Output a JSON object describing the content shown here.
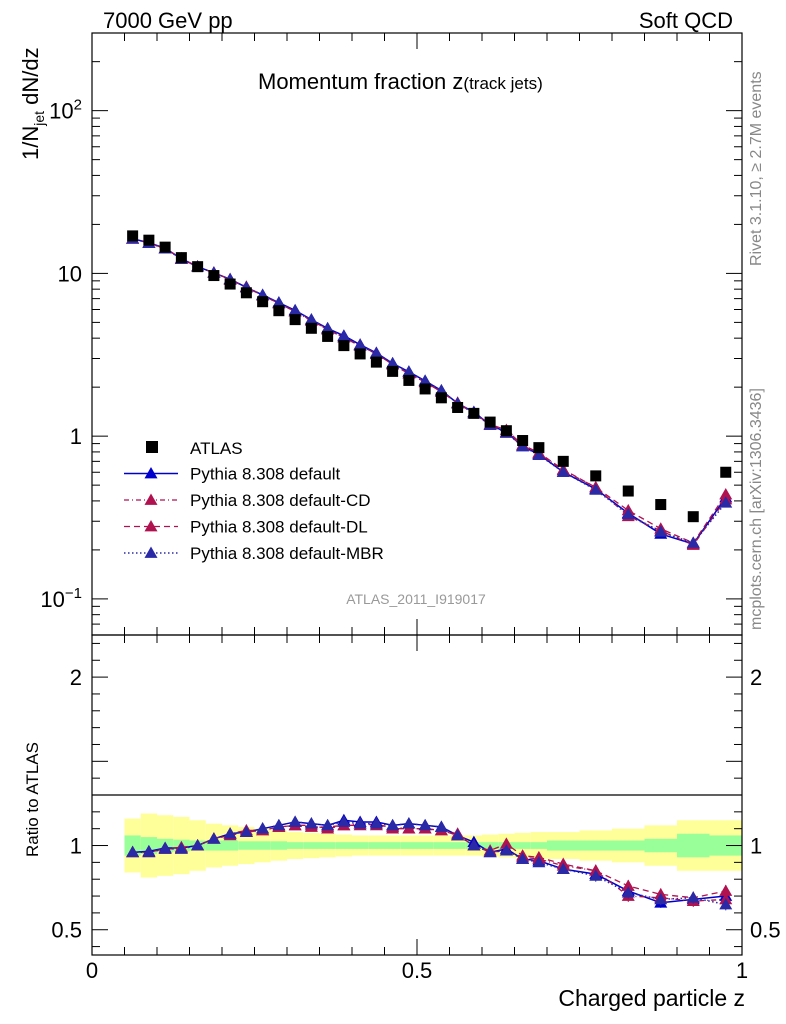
{
  "header": {
    "energy_label": "7000 GeV pp",
    "process_label": "Soft QCD",
    "side_rivet": "Rivet 3.1.10, ≥ 2.7M events",
    "side_mcplots": "mcplots.cern.ch [arXiv:1306.3436]"
  },
  "chart_data": {
    "type": "scatter",
    "title_main": "Momentum fraction z",
    "title_sub": "(track jets)",
    "analysis_id": "ATLAS_2011_I919017",
    "xlabel": "Charged particle z",
    "ylabel_main": "1/N",
    "ylabel_sub": "jet",
    "ylabel_tail": " dN/dz",
    "ylabel_ratio": "Ratio to ATLAS",
    "xlim": [
      0,
      1
    ],
    "ylim_main": [
      0.06,
      300
    ],
    "yscale_main": "log",
    "ylim_ratio": [
      0.35,
      2.25
    ],
    "x_ticks": [
      {
        "v": 0,
        "label": "0"
      },
      {
        "v": 0.5,
        "label": "0.5"
      },
      {
        "v": 1,
        "label": "1"
      }
    ],
    "main_ticks": [
      {
        "v": 0.1,
        "label": "10",
        "exp": "−1"
      },
      {
        "v": 1,
        "label": "1",
        "exp": ""
      },
      {
        "v": 10,
        "label": "10",
        "exp": ""
      },
      {
        "v": 100,
        "label": "10",
        "exp": "2"
      }
    ],
    "ratio_ticks": [
      {
        "v": 0.5,
        "label": "0.5"
      },
      {
        "v": 1,
        "label": "1"
      },
      {
        "v": 2,
        "label": "2"
      }
    ],
    "legend_position": "middle-left",
    "x": [
      0.0625,
      0.0875,
      0.1125,
      0.1375,
      0.1625,
      0.1875,
      0.2125,
      0.2375,
      0.2625,
      0.2875,
      0.3125,
      0.3375,
      0.3625,
      0.3875,
      0.4125,
      0.4375,
      0.4625,
      0.4875,
      0.5125,
      0.5375,
      0.5625,
      0.5875,
      0.6125,
      0.6375,
      0.6625,
      0.6875,
      0.725,
      0.775,
      0.825,
      0.875,
      0.925,
      0.975
    ],
    "band_halfwidth_x": [
      0.0125,
      0.0125,
      0.0125,
      0.0125,
      0.0125,
      0.0125,
      0.0125,
      0.0125,
      0.0125,
      0.0125,
      0.0125,
      0.0125,
      0.0125,
      0.0125,
      0.0125,
      0.0125,
      0.0125,
      0.0125,
      0.0125,
      0.0125,
      0.0125,
      0.0125,
      0.0125,
      0.0125,
      0.0125,
      0.0125,
      0.025,
      0.025,
      0.025,
      0.025,
      0.025,
      0.025
    ],
    "data": {
      "name": "ATLAS",
      "color": "#000000",
      "values": [
        17,
        16,
        14.5,
        12.5,
        11,
        9.7,
        8.6,
        7.6,
        6.7,
        5.9,
        5.2,
        4.6,
        4.1,
        3.6,
        3.2,
        2.85,
        2.5,
        2.2,
        1.95,
        1.72,
        1.5,
        1.38,
        1.22,
        1.08,
        0.94,
        0.85,
        0.7,
        0.57,
        0.46,
        0.38,
        0.32,
        0.6
      ],
      "stat_err_frac": [
        0.06,
        0.05,
        0.04,
        0.035,
        0.03,
        0.03,
        0.03,
        0.025,
        0.025,
        0.025,
        0.02,
        0.02,
        0.02,
        0.02,
        0.02,
        0.02,
        0.02,
        0.02,
        0.02,
        0.02,
        0.02,
        0.02,
        0.02,
        0.02,
        0.02,
        0.02,
        0.03,
        0.03,
        0.03,
        0.04,
        0.07,
        0.06
      ],
      "total_err_frac": [
        0.16,
        0.19,
        0.18,
        0.17,
        0.15,
        0.13,
        0.12,
        0.11,
        0.1,
        0.09,
        0.08,
        0.075,
        0.07,
        0.065,
        0.06,
        0.06,
        0.06,
        0.06,
        0.06,
        0.06,
        0.06,
        0.06,
        0.065,
        0.07,
        0.075,
        0.08,
        0.08,
        0.09,
        0.1,
        0.12,
        0.15,
        0.15
      ]
    },
    "series": [
      {
        "name": "Pythia 8.308 default",
        "color": "#0000cc",
        "dash": "",
        "width": 1.5,
        "err": 0.012,
        "ratio": [
          0.96,
          0.965,
          0.985,
          0.985,
          1.0,
          1.04,
          1.07,
          1.08,
          1.1,
          1.12,
          1.14,
          1.13,
          1.12,
          1.15,
          1.14,
          1.14,
          1.12,
          1.13,
          1.12,
          1.11,
          1.06,
          1.02,
          0.96,
          0.98,
          0.92,
          0.91,
          0.86,
          0.83,
          0.73,
          0.66,
          0.68,
          0.7
        ]
      },
      {
        "name": "Pythia 8.308 default-CD",
        "color": "#b0124f",
        "dash": "5,3,1,3",
        "width": 1.3,
        "err": 0.014,
        "ratio": [
          0.96,
          0.96,
          0.98,
          0.98,
          1.0,
          1.04,
          1.07,
          1.09,
          1.09,
          1.11,
          1.12,
          1.11,
          1.11,
          1.12,
          1.13,
          1.12,
          1.11,
          1.1,
          1.1,
          1.09,
          1.07,
          1.0,
          0.96,
          0.97,
          0.93,
          0.92,
          0.88,
          0.85,
          0.7,
          0.69,
          0.67,
          0.68
        ]
      },
      {
        "name": "Pythia 8.308 default-DL",
        "color": "#b0124f",
        "dash": "6,4",
        "width": 1.3,
        "err": 0.014,
        "ratio": [
          0.96,
          0.96,
          0.98,
          0.99,
          1.0,
          1.04,
          1.06,
          1.08,
          1.09,
          1.11,
          1.12,
          1.12,
          1.1,
          1.12,
          1.12,
          1.13,
          1.1,
          1.1,
          1.1,
          1.09,
          1.06,
          1.0,
          0.97,
          1.01,
          0.94,
          0.93,
          0.89,
          0.85,
          0.76,
          0.71,
          0.69,
          0.73
        ]
      },
      {
        "name": "Pythia 8.308 default-MBR",
        "color": "#2a2aa6",
        "dash": "1.5,2.5",
        "width": 1.5,
        "err": 0.014,
        "ratio": [
          0.96,
          0.96,
          0.98,
          0.98,
          1.0,
          1.04,
          1.07,
          1.08,
          1.1,
          1.12,
          1.14,
          1.13,
          1.12,
          1.14,
          1.13,
          1.13,
          1.12,
          1.13,
          1.12,
          1.11,
          1.06,
          1.0,
          0.96,
          0.97,
          0.92,
          0.9,
          0.86,
          0.82,
          0.72,
          0.68,
          0.69,
          0.65
        ]
      }
    ],
    "band_colors": {
      "total": "#ffff99",
      "stat": "#99ff99"
    }
  }
}
